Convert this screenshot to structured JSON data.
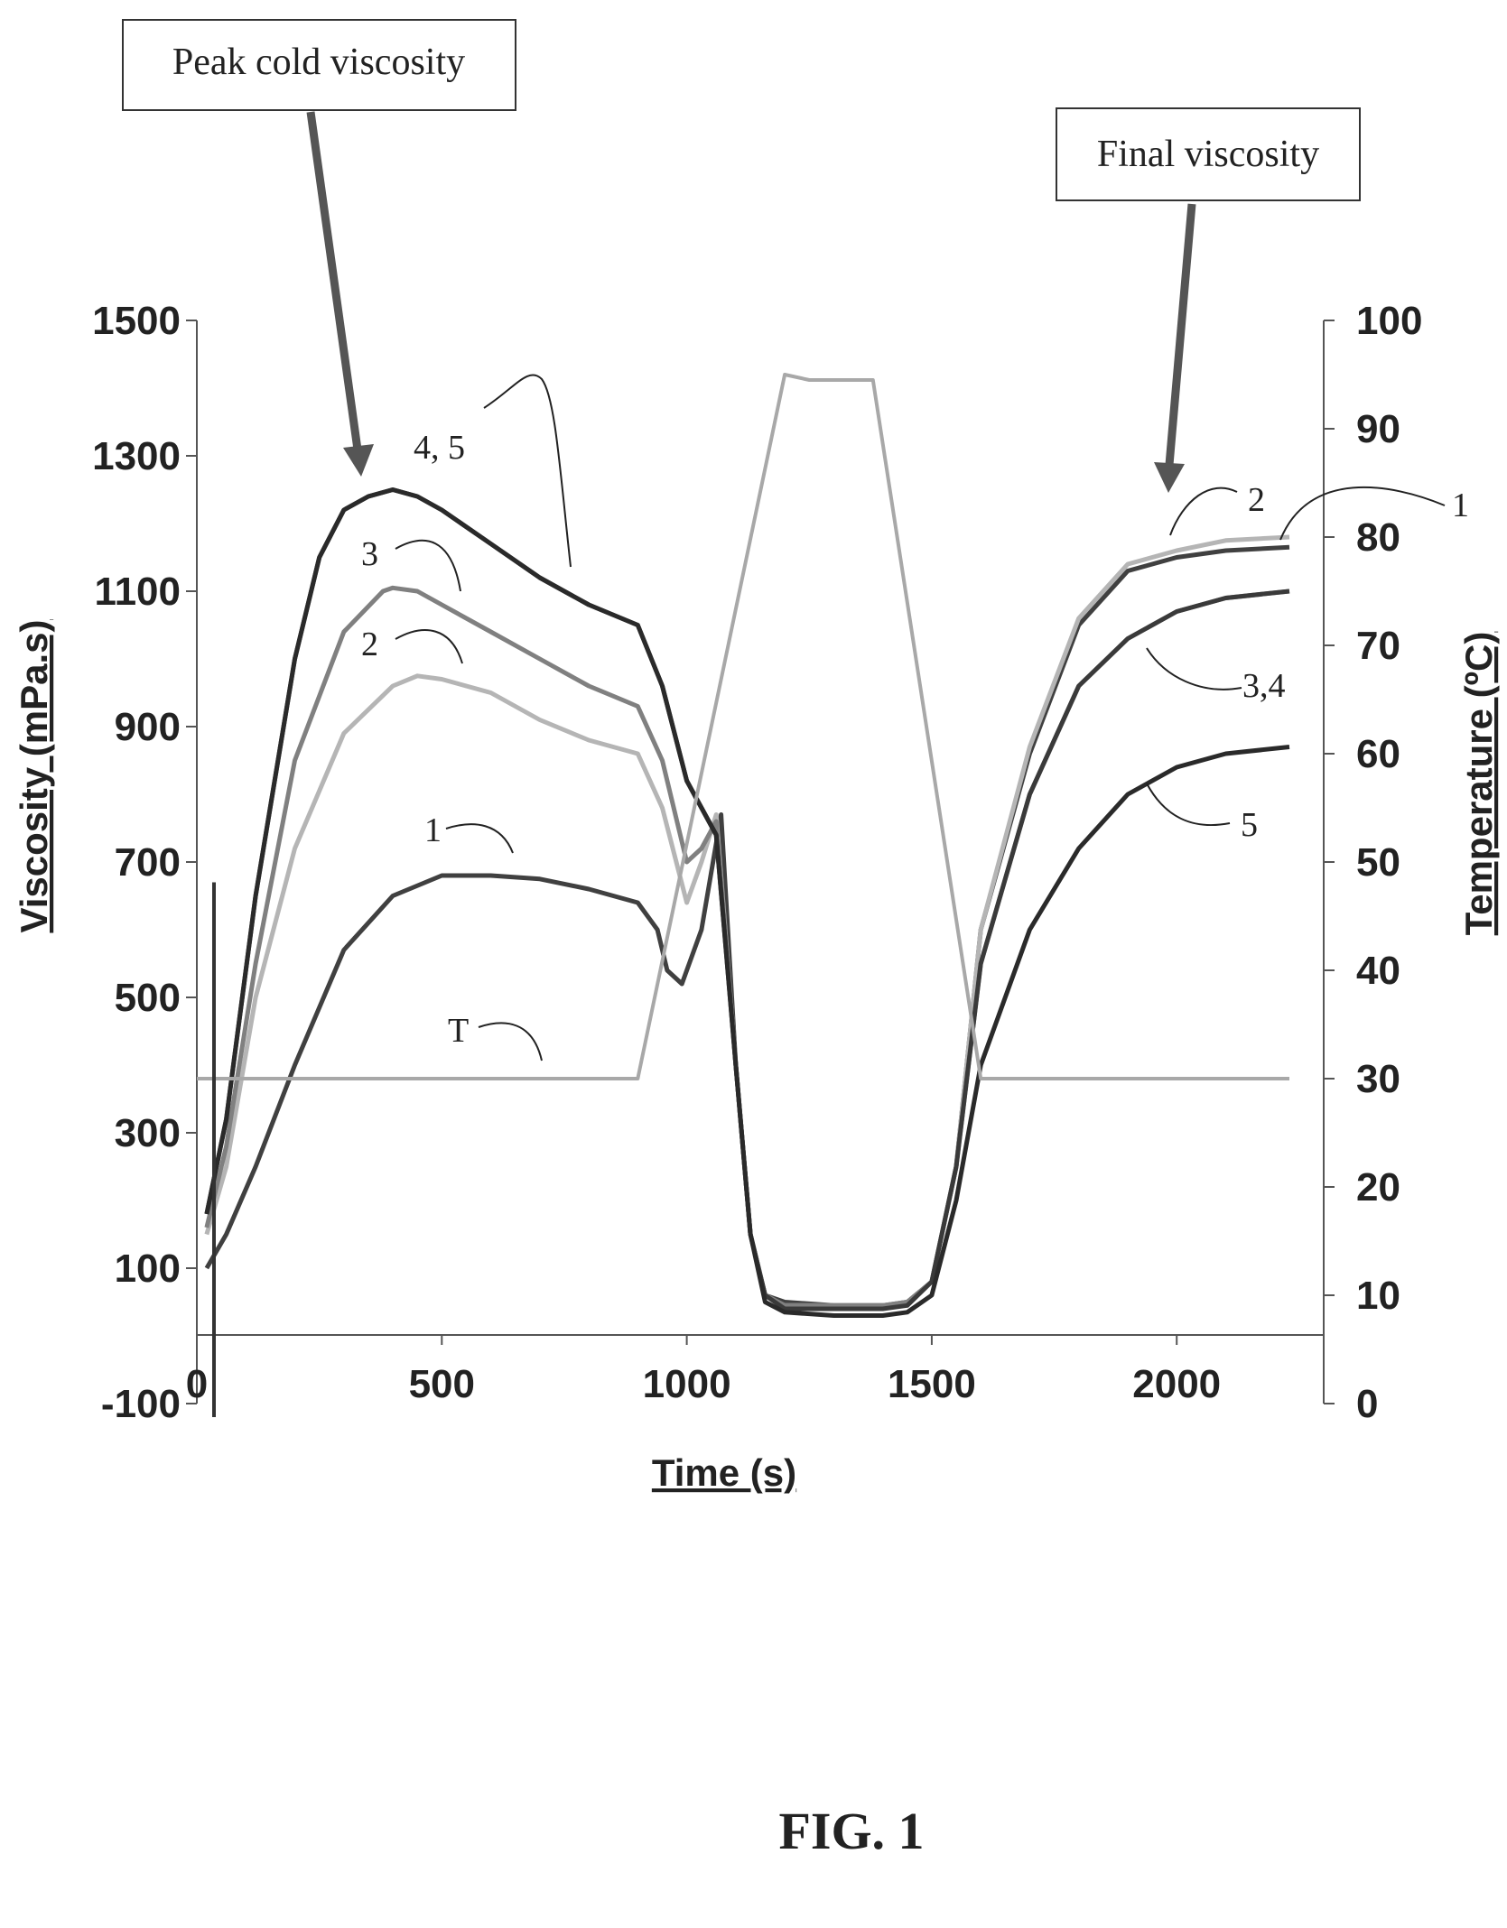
{
  "figure_caption": "FIG. 1",
  "chart_data": {
    "type": "line",
    "xlabel": "Time (s)",
    "ylabel": "Viscosity (mPa.s)",
    "y2label": "Temperature (ºC)",
    "xlim": [
      0,
      2300
    ],
    "ylim": [
      -100,
      1500
    ],
    "y2lim": [
      0,
      100
    ],
    "x_ticks": [
      0,
      500,
      1000,
      1500,
      2000
    ],
    "y_ticks": [
      -100,
      100,
      300,
      500,
      700,
      900,
      1100,
      1300,
      1500
    ],
    "y2_ticks": [
      0,
      10,
      20,
      30,
      40,
      50,
      60,
      70,
      80,
      90,
      100
    ],
    "grid": false,
    "colors": {
      "c1": "#404040",
      "c2": "#b5b5b5",
      "c3": "#808080",
      "c4": "#3a3a3a",
      "c5": "#2a2a2a",
      "T": "#a8a8a8"
    },
    "series": [
      {
        "name": "1",
        "axis": "left",
        "x": [
          20,
          60,
          120,
          200,
          300,
          400,
          500,
          600,
          700,
          800,
          900,
          940,
          960,
          990,
          1030,
          1070,
          1100,
          1130,
          1160,
          1200,
          1300,
          1400,
          1450,
          1500,
          1550,
          1600,
          1700,
          1800,
          1900,
          2000,
          2100,
          2230
        ],
        "y": [
          100,
          150,
          250,
          400,
          570,
          650,
          680,
          680,
          675,
          660,
          640,
          600,
          540,
          520,
          600,
          770,
          400,
          150,
          60,
          50,
          45,
          45,
          50,
          80,
          250,
          600,
          860,
          1050,
          1130,
          1150,
          1160,
          1165
        ]
      },
      {
        "name": "2",
        "axis": "left",
        "x": [
          20,
          60,
          120,
          200,
          300,
          400,
          450,
          500,
          600,
          700,
          800,
          900,
          950,
          1000,
          1030,
          1060,
          1100,
          1130,
          1160,
          1200,
          1300,
          1400,
          1450,
          1500,
          1550,
          1600,
          1700,
          1800,
          1900,
          2000,
          2100,
          2230
        ],
        "y": [
          150,
          250,
          500,
          720,
          890,
          960,
          975,
          970,
          950,
          910,
          880,
          860,
          780,
          640,
          700,
          770,
          400,
          150,
          60,
          45,
          45,
          45,
          50,
          80,
          250,
          600,
          870,
          1060,
          1140,
          1160,
          1175,
          1180
        ]
      },
      {
        "name": "3",
        "axis": "left",
        "x": [
          20,
          60,
          120,
          200,
          300,
          380,
          400,
          450,
          500,
          600,
          700,
          800,
          900,
          950,
          1000,
          1030,
          1060,
          1100,
          1130,
          1160,
          1200,
          1300,
          1400,
          1450,
          1500,
          1550,
          1600,
          1700,
          1800,
          1900,
          2000,
          2100,
          2230
        ],
        "y": [
          160,
          280,
          550,
          850,
          1040,
          1100,
          1105,
          1100,
          1080,
          1040,
          1000,
          960,
          930,
          850,
          700,
          720,
          760,
          400,
          150,
          60,
          45,
          45,
          45,
          50,
          80,
          250,
          550,
          800,
          960,
          1030,
          1070,
          1090,
          1100
        ]
      },
      {
        "name": "4",
        "axis": "left",
        "x": [
          20,
          60,
          120,
          200,
          250,
          300,
          350,
          400,
          450,
          500,
          600,
          700,
          800,
          900,
          950,
          1000,
          1030,
          1060,
          1100,
          1130,
          1160,
          1200,
          1300,
          1400,
          1450,
          1500,
          1550,
          1600,
          1700,
          1800,
          1900,
          2000,
          2100,
          2230
        ],
        "y": [
          180,
          320,
          650,
          1000,
          1150,
          1220,
          1240,
          1250,
          1240,
          1220,
          1170,
          1120,
          1080,
          1050,
          960,
          820,
          780,
          740,
          400,
          150,
          60,
          40,
          40,
          40,
          45,
          80,
          250,
          550,
          800,
          960,
          1030,
          1070,
          1090,
          1100
        ]
      },
      {
        "name": "5",
        "axis": "left",
        "x": [
          20,
          60,
          120,
          200,
          250,
          300,
          350,
          400,
          450,
          500,
          600,
          700,
          800,
          900,
          950,
          1000,
          1030,
          1060,
          1100,
          1130,
          1160,
          1200,
          1300,
          1400,
          1450,
          1500,
          1550,
          1600,
          1700,
          1800,
          1900,
          2000,
          2100,
          2230
        ],
        "y": [
          180,
          320,
          650,
          1000,
          1150,
          1220,
          1240,
          1250,
          1240,
          1220,
          1170,
          1120,
          1080,
          1050,
          960,
          820,
          780,
          740,
          400,
          150,
          50,
          35,
          30,
          30,
          35,
          60,
          200,
          400,
          600,
          720,
          800,
          840,
          860,
          870
        ]
      },
      {
        "name": "T",
        "axis": "right",
        "x": [
          0,
          50,
          900,
          1200,
          1250,
          1300,
          1380,
          1600,
          1700,
          2230
        ],
        "y": [
          30,
          30,
          30,
          95,
          94.5,
          94.5,
          94.5,
          30,
          30,
          30
        ]
      }
    ],
    "spike": {
      "x": 35,
      "y_top": 670,
      "y_bottom": -120
    },
    "curve_labels": [
      {
        "text": "4, 5",
        "series": "4"
      },
      {
        "text": "3",
        "series": "3"
      },
      {
        "text": "2",
        "series": "2"
      },
      {
        "text": "1",
        "series": "1"
      },
      {
        "text": "T",
        "series": "T"
      },
      {
        "text": "2",
        "series": "2"
      },
      {
        "text": "1",
        "series": "1"
      },
      {
        "text": "3,4",
        "series": "3"
      },
      {
        "text": "5",
        "series": "5"
      }
    ],
    "annotations": [
      {
        "text": "Peak cold viscosity",
        "x": 360,
        "y": 1250
      },
      {
        "text": "Final viscosity",
        "x": 1990,
        "y": 1160
      }
    ]
  }
}
